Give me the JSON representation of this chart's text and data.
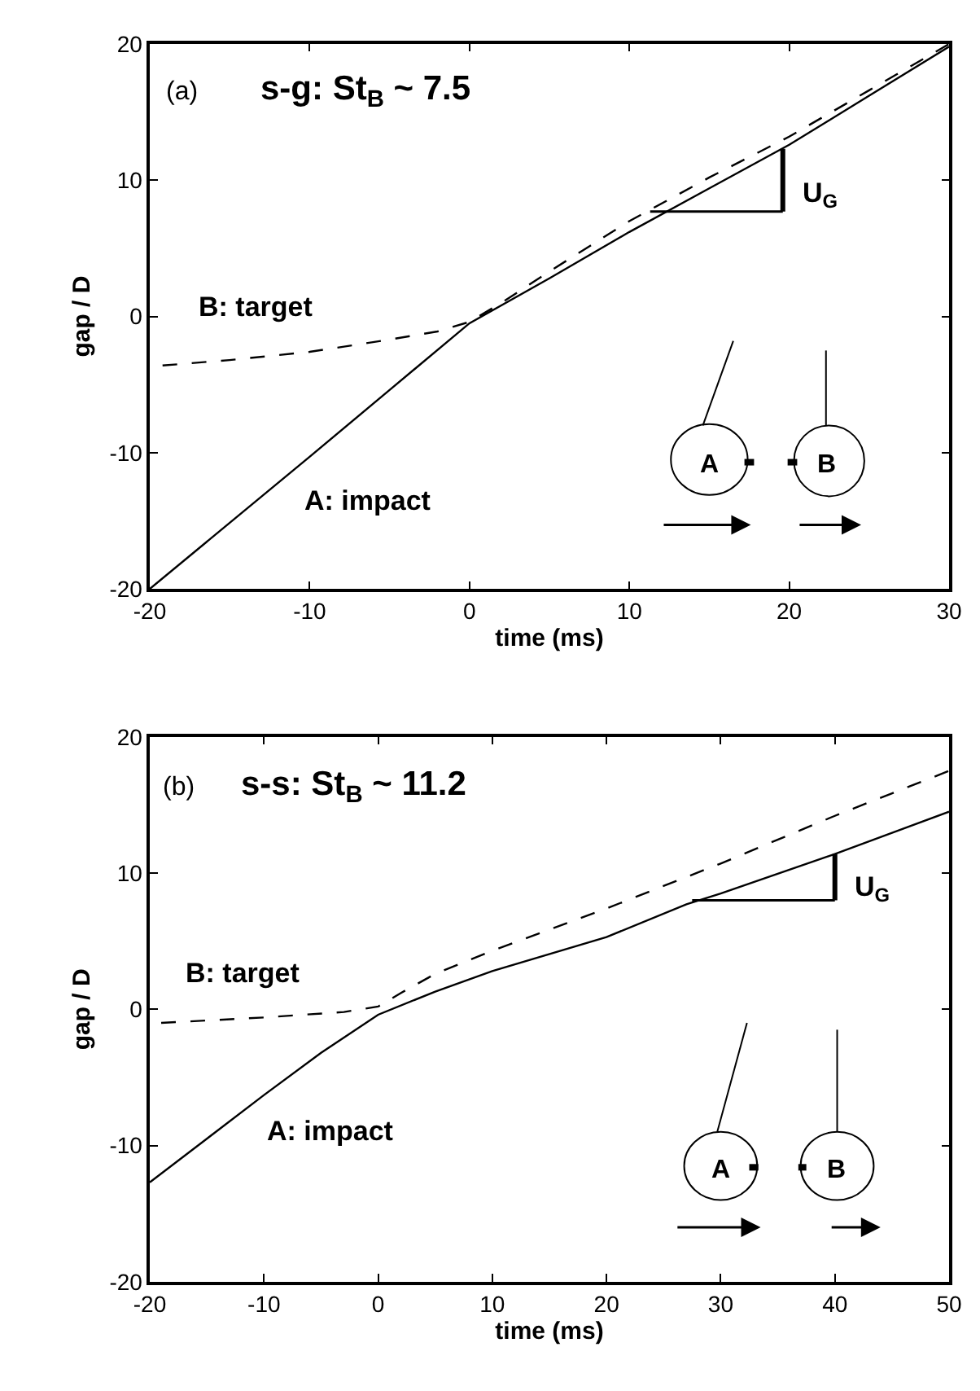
{
  "chart_data": [
    {
      "type": "line",
      "xlabel": "time (ms)",
      "ylabel": "gap / D",
      "xlim": [
        -20,
        30
      ],
      "ylim": [
        -20,
        20
      ],
      "xticks": [
        -20,
        -10,
        0,
        10,
        20,
        30
      ],
      "yticks": [
        -20,
        -10,
        0,
        10,
        20
      ],
      "legend": false,
      "marker": "none",
      "annotations": [
        "(a)",
        "s-g: St$_{B}$ ~ 7.5",
        {
          "text": "U$_{G}$",
          "x": 19.6,
          "y": 12.3
        },
        "A",
        "B"
      ],
      "series": [
        {
          "name": "A: impact",
          "color": "#000000",
          "line_style": "solid",
          "x": [
            -20,
            -10,
            -5,
            0,
            5,
            10,
            15,
            20,
            25,
            30
          ],
          "values": [
            -20,
            -10.3,
            -5.4,
            -0.5,
            2.8,
            6.2,
            9.4,
            12.6,
            16.2,
            19.8
          ]
        },
        {
          "name": "B: target",
          "color": "#000000",
          "line_style": "dashed",
          "x": [
            -19.2,
            -15,
            -10,
            -5,
            -2,
            0,
            2,
            5,
            10,
            15,
            20,
            25,
            30
          ],
          "values": [
            -3.6,
            -3.2,
            -2.6,
            -1.7,
            -1.1,
            -0.4,
            1.0,
            3.3,
            7.0,
            10.2,
            13.2,
            16.6,
            20
          ]
        }
      ]
    },
    {
      "type": "line",
      "xlabel": "time (ms)",
      "ylabel": "gap / D",
      "xlim": [
        -20,
        50
      ],
      "ylim": [
        -20,
        20
      ],
      "xticks": [
        -20,
        -10,
        0,
        10,
        20,
        30,
        40,
        50
      ],
      "yticks": [
        -20,
        -10,
        0,
        10,
        20
      ],
      "legend": false,
      "marker": "none",
      "annotations": [
        "(b)",
        "s-s: St$_{B}$ ~ 11.2",
        {
          "text": "U$_{G}$",
          "x": 40,
          "y": 11.4
        },
        "A",
        "B"
      ],
      "series": [
        {
          "name": "A: impact",
          "color": "#000000",
          "line_style": "solid",
          "x": [
            -20,
            -15,
            -10,
            -5,
            0,
            5,
            10,
            20,
            27,
            30,
            40,
            50
          ],
          "values": [
            -12.7,
            -9.5,
            -6.3,
            -3.2,
            -0.4,
            1.3,
            2.8,
            5.3,
            7.7,
            8.5,
            11.4,
            14.5
          ]
        },
        {
          "name": "B: target",
          "color": "#000000",
          "line_style": "dashed",
          "x": [
            -19,
            -10,
            -3,
            0,
            2,
            5,
            10,
            20,
            30,
            40,
            50
          ],
          "values": [
            -1.0,
            -0.6,
            -0.2,
            0.2,
            1.2,
            2.6,
            4.3,
            7.4,
            10.7,
            14.2,
            17.5
          ]
        }
      ]
    }
  ]
}
